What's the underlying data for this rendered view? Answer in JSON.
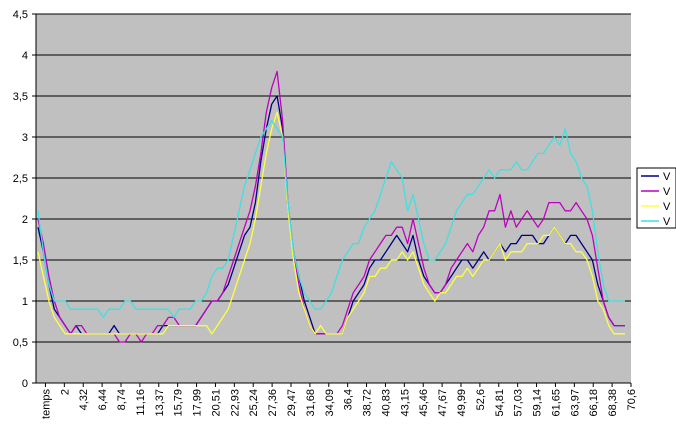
{
  "chart_data": {
    "type": "line",
    "title": "",
    "xlabel": "",
    "ylabel": "",
    "ylim": [
      0,
      4.5
    ],
    "y_ticks": [
      "0",
      "0,5",
      "1",
      "1,5",
      "2",
      "2,5",
      "3",
      "3,5",
      "4",
      "4,5"
    ],
    "x_ticks": [
      "temps",
      "2",
      "4,32",
      "6,44",
      "8,74",
      "11,16",
      "13,37",
      "15,79",
      "17,99",
      "20,51",
      "22,93",
      "25,24",
      "27,36",
      "29,47",
      "31,68",
      "34,09",
      "36,4",
      "38,72",
      "40,83",
      "43,15",
      "45,46",
      "47,67",
      "49,99",
      "52,6",
      "54,81",
      "57,03",
      "59,14",
      "61,65",
      "63,97",
      "66,18",
      "68,38",
      "70,6"
    ],
    "grid": "horizontal",
    "plot_background": "#c0c0c0",
    "legend_position": "right",
    "series": [
      {
        "name": "V",
        "color": "#000080",
        "values": [
          1.9,
          1.6,
          1.2,
          0.9,
          0.8,
          0.7,
          0.6,
          0.7,
          0.6,
          0.6,
          0.6,
          0.6,
          0.6,
          0.6,
          0.7,
          0.6,
          0.6,
          0.6,
          0.6,
          0.6,
          0.6,
          0.6,
          0.6,
          0.7,
          0.7,
          0.7,
          0.7,
          0.7,
          0.7,
          0.7,
          0.8,
          0.9,
          1.0,
          1.0,
          1.1,
          1.2,
          1.4,
          1.6,
          1.8,
          1.9,
          2.2,
          2.7,
          3.1,
          3.4,
          3.5,
          3.1,
          2.1,
          1.6,
          1.3,
          1.0,
          0.8,
          0.6,
          0.6,
          0.6,
          0.6,
          0.6,
          0.6,
          0.8,
          1.0,
          1.1,
          1.2,
          1.4,
          1.5,
          1.5,
          1.6,
          1.7,
          1.8,
          1.7,
          1.6,
          1.8,
          1.5,
          1.3,
          1.2,
          1.1,
          1.1,
          1.2,
          1.3,
          1.4,
          1.5,
          1.5,
          1.4,
          1.5,
          1.6,
          1.5,
          1.6,
          1.7,
          1.6,
          1.7,
          1.7,
          1.8,
          1.8,
          1.8,
          1.7,
          1.7,
          1.8,
          1.9,
          1.8,
          1.7,
          1.8,
          1.8,
          1.7,
          1.6,
          1.5,
          1.2,
          1.0,
          0.8,
          0.7,
          0.7,
          0.7
        ]
      },
      {
        "name": "V",
        "color": "#c000c0",
        "values": [
          2.0,
          1.7,
          1.3,
          1.0,
          0.8,
          0.7,
          0.6,
          0.7,
          0.7,
          0.6,
          0.6,
          0.6,
          0.6,
          0.6,
          0.6,
          0.5,
          0.5,
          0.6,
          0.6,
          0.5,
          0.6,
          0.6,
          0.7,
          0.7,
          0.8,
          0.8,
          0.7,
          0.7,
          0.7,
          0.7,
          0.8,
          0.9,
          1.0,
          1.0,
          1.1,
          1.3,
          1.5,
          1.7,
          1.9,
          2.1,
          2.4,
          2.8,
          3.3,
          3.6,
          3.8,
          3.2,
          2.2,
          1.6,
          1.2,
          0.9,
          0.7,
          0.6,
          0.6,
          0.6,
          0.6,
          0.6,
          0.7,
          0.9,
          1.1,
          1.2,
          1.3,
          1.5,
          1.6,
          1.7,
          1.8,
          1.8,
          1.9,
          1.9,
          1.7,
          2.0,
          1.7,
          1.4,
          1.2,
          1.1,
          1.1,
          1.2,
          1.4,
          1.5,
          1.6,
          1.7,
          1.6,
          1.8,
          1.9,
          2.1,
          2.1,
          2.3,
          1.9,
          2.1,
          1.9,
          2.0,
          2.1,
          2.0,
          1.9,
          2.0,
          2.2,
          2.2,
          2.2,
          2.1,
          2.1,
          2.2,
          2.1,
          2.0,
          1.8,
          1.4,
          1.0,
          0.8,
          0.7,
          0.7,
          0.7
        ]
      },
      {
        "name": "V",
        "color": "#ffff40",
        "values": [
          1.6,
          1.3,
          1.0,
          0.8,
          0.7,
          0.6,
          0.6,
          0.6,
          0.6,
          0.6,
          0.6,
          0.6,
          0.6,
          0.6,
          0.6,
          0.6,
          0.6,
          0.6,
          0.6,
          0.6,
          0.6,
          0.6,
          0.6,
          0.6,
          0.7,
          0.7,
          0.7,
          0.7,
          0.7,
          0.7,
          0.7,
          0.7,
          0.6,
          0.7,
          0.8,
          0.9,
          1.1,
          1.3,
          1.5,
          1.7,
          2.0,
          2.4,
          2.8,
          3.1,
          3.3,
          3.0,
          2.1,
          1.5,
          1.1,
          0.9,
          0.7,
          0.6,
          0.7,
          0.6,
          0.6,
          0.6,
          0.6,
          0.8,
          0.9,
          1.0,
          1.1,
          1.3,
          1.3,
          1.4,
          1.4,
          1.5,
          1.5,
          1.6,
          1.5,
          1.6,
          1.4,
          1.2,
          1.1,
          1.0,
          1.1,
          1.1,
          1.2,
          1.3,
          1.3,
          1.4,
          1.3,
          1.4,
          1.5,
          1.5,
          1.6,
          1.7,
          1.5,
          1.6,
          1.6,
          1.6,
          1.7,
          1.7,
          1.7,
          1.8,
          1.8,
          1.9,
          1.8,
          1.7,
          1.7,
          1.6,
          1.6,
          1.5,
          1.3,
          1.0,
          0.9,
          0.7,
          0.6,
          0.6,
          0.6
        ]
      },
      {
        "name": "V",
        "color": "#40e0e0",
        "values": [
          2.1,
          1.6,
          1.2,
          1.0,
          1.0,
          1.0,
          0.9,
          0.9,
          0.9,
          0.9,
          0.9,
          0.9,
          0.8,
          0.9,
          0.9,
          0.9,
          1.0,
          1.0,
          0.9,
          0.9,
          0.9,
          0.9,
          0.9,
          0.9,
          0.9,
          0.8,
          0.9,
          0.9,
          0.9,
          1.0,
          1.0,
          1.1,
          1.3,
          1.4,
          1.4,
          1.5,
          1.8,
          2.1,
          2.4,
          2.6,
          2.8,
          3.0,
          3.1,
          3.2,
          3.1,
          3.0,
          2.2,
          1.6,
          1.3,
          1.1,
          1.0,
          0.9,
          0.9,
          1.0,
          1.1,
          1.3,
          1.5,
          1.6,
          1.7,
          1.7,
          1.9,
          2.0,
          2.1,
          2.3,
          2.5,
          2.7,
          2.6,
          2.5,
          2.1,
          2.3,
          2.0,
          1.7,
          1.5,
          1.5,
          1.6,
          1.7,
          1.9,
          2.1,
          2.2,
          2.3,
          2.3,
          2.4,
          2.5,
          2.6,
          2.5,
          2.6,
          2.6,
          2.6,
          2.7,
          2.6,
          2.6,
          2.7,
          2.8,
          2.8,
          2.9,
          3.0,
          2.9,
          3.1,
          2.8,
          2.7,
          2.5,
          2.4,
          2.1,
          1.6,
          1.2,
          1.0,
          1.0,
          1.0,
          1.0
        ]
      }
    ]
  }
}
